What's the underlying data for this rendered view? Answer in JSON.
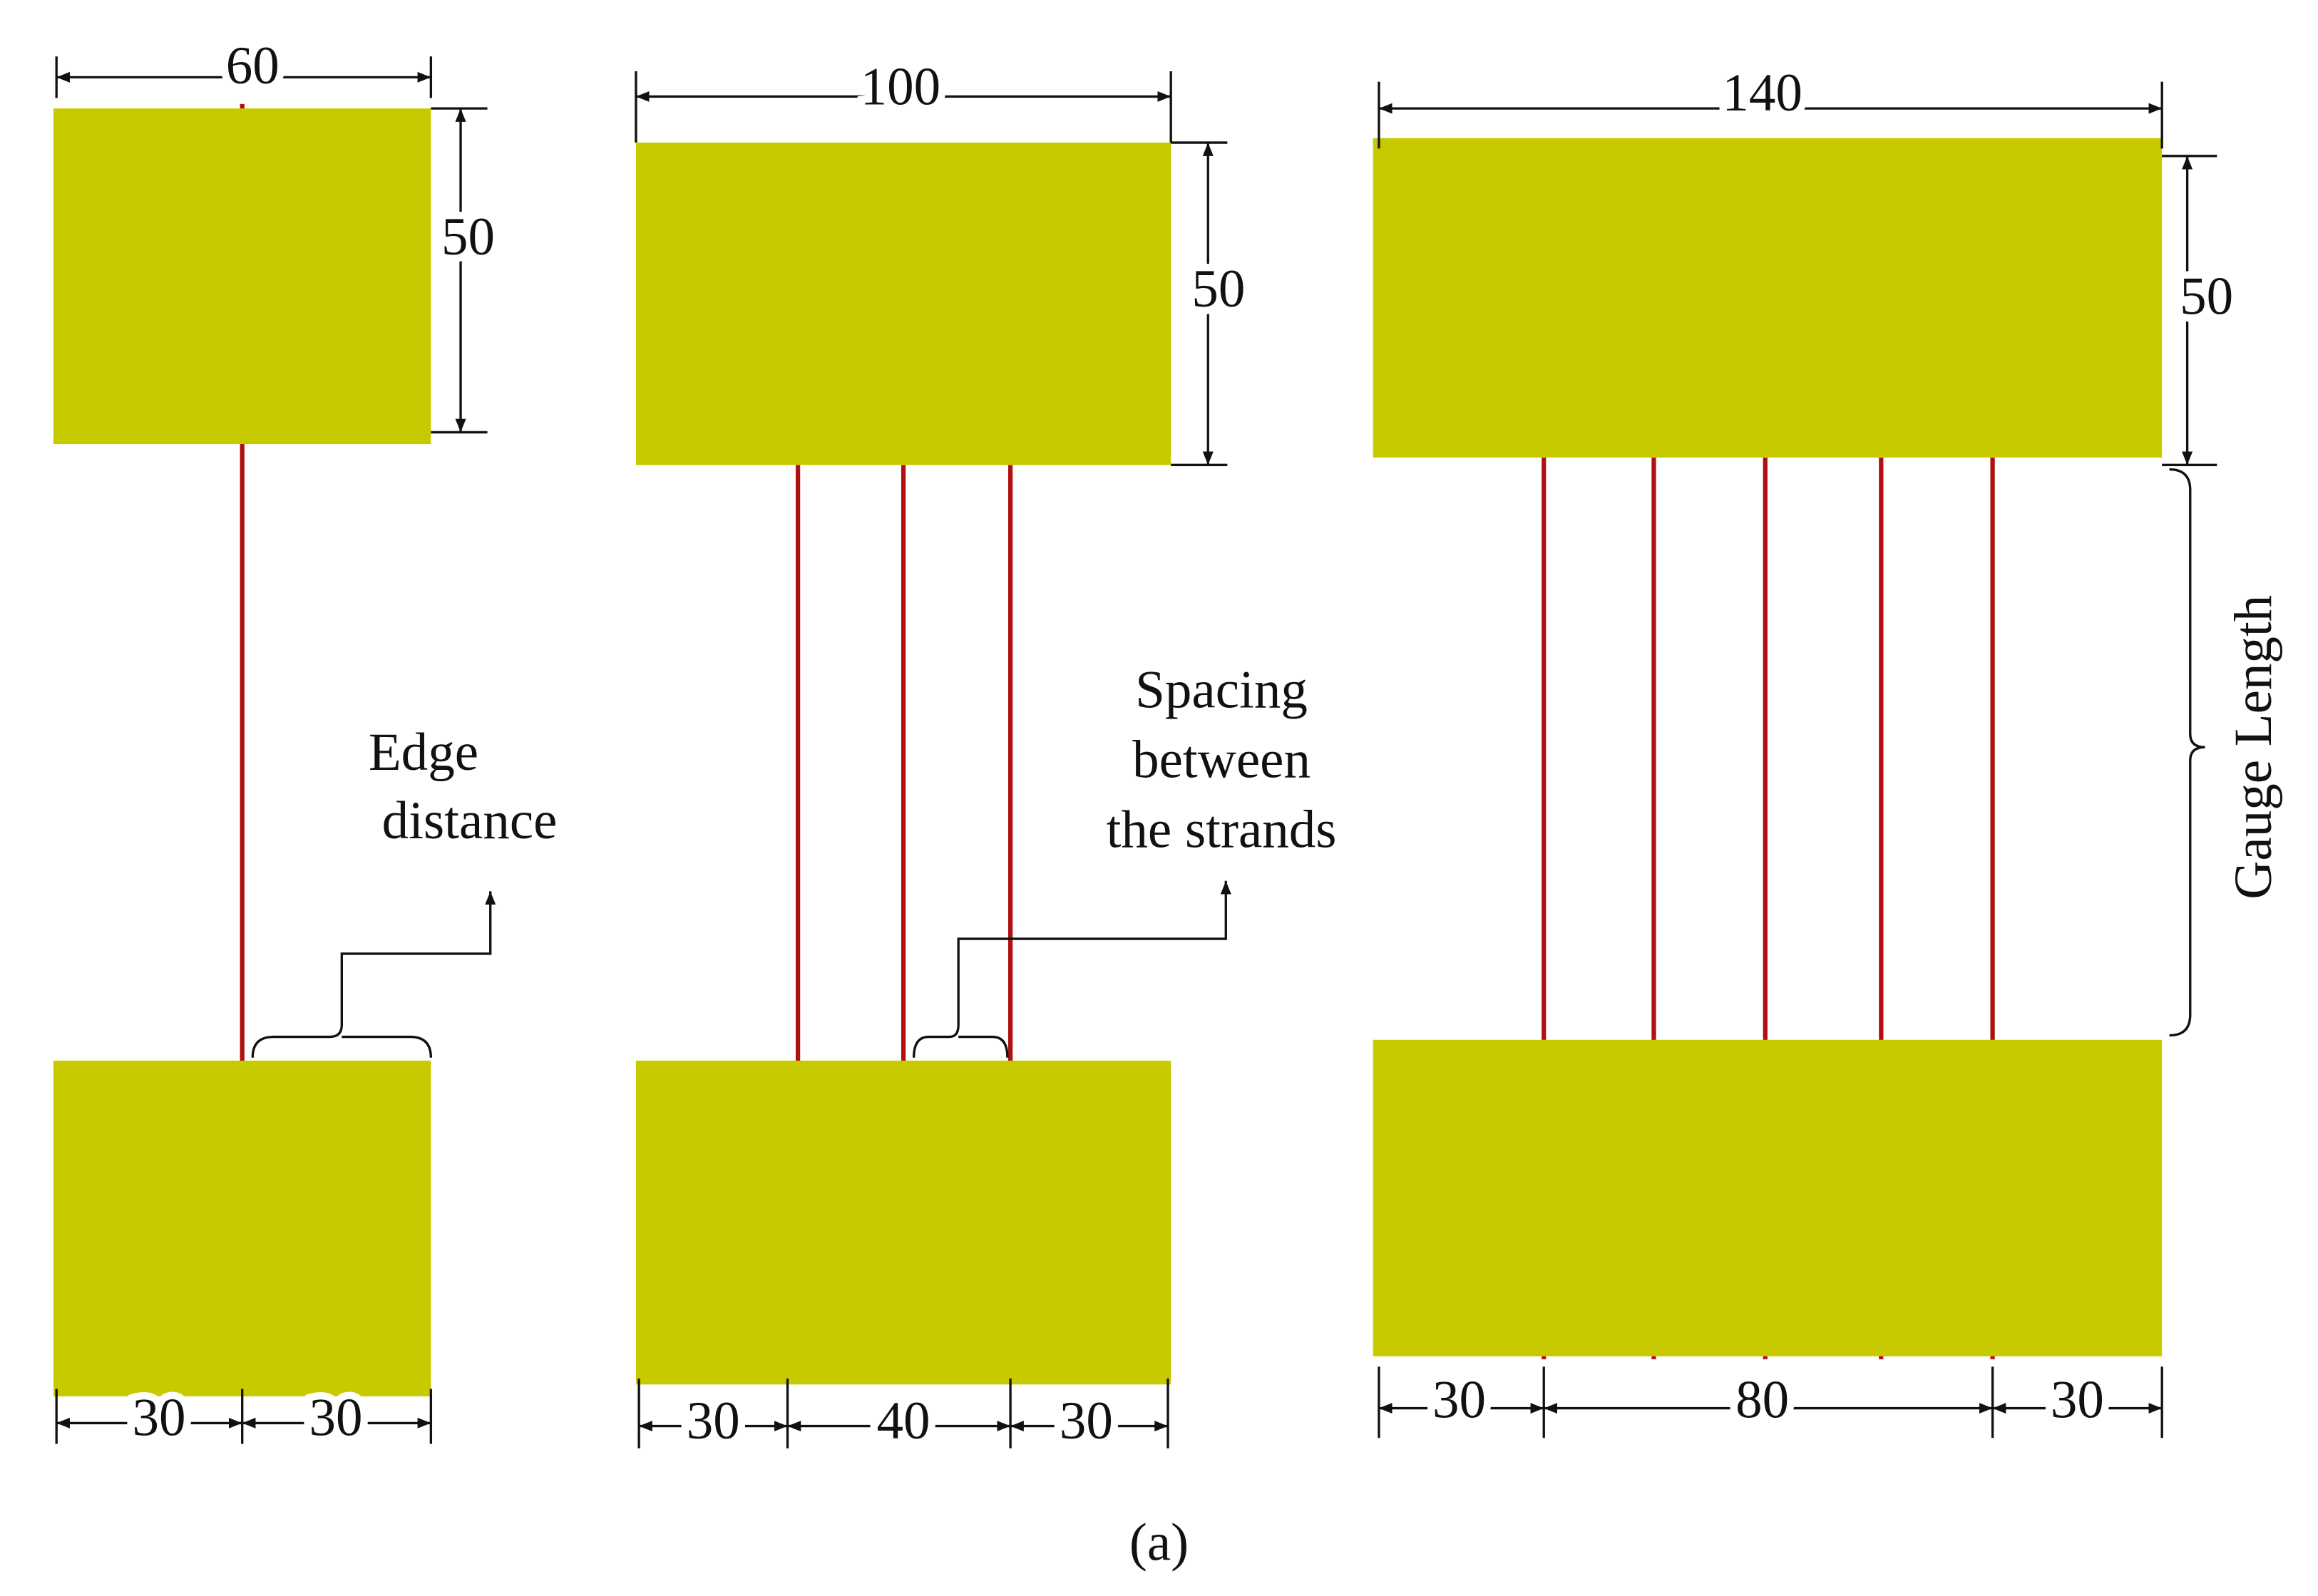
{
  "specimens": [
    {
      "width": 60,
      "height": 50,
      "bottom": [
        30,
        30
      ],
      "annotation": [
        "Edge",
        "distance"
      ]
    },
    {
      "width": 100,
      "height": 50,
      "bottom": [
        30,
        40,
        30
      ],
      "annotation": [
        "Spacing",
        "between",
        "the strands"
      ]
    },
    {
      "width": 140,
      "height": 50,
      "bottom": [
        30,
        80,
        30
      ],
      "side": "Gauge Length"
    }
  ],
  "caption": "(a)"
}
